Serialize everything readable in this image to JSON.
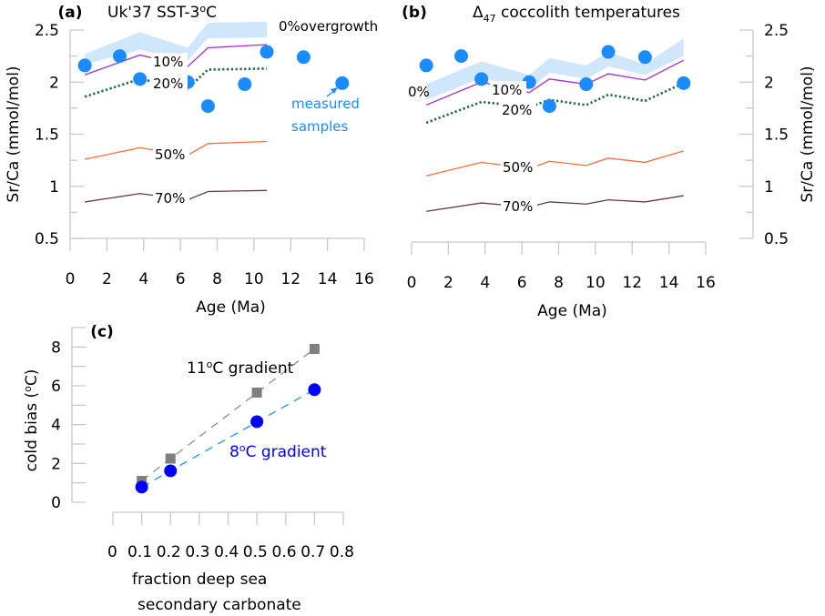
{
  "chart_data": [
    {
      "id": "a",
      "type": "line",
      "panel_label": "(a)",
      "title": "Uk'37 SST-3",
      "title_sup": "o",
      "title_suffix": "C",
      "xlabel": "Age (Ma)",
      "ylabel": "Sr/Ca (mmol/mol)",
      "xlim": [
        0,
        16
      ],
      "ylim": [
        0.5,
        2.5
      ],
      "xticks": [
        0,
        2,
        4,
        6,
        8,
        10,
        12,
        14,
        16
      ],
      "yticks": [
        0.5,
        1,
        1.5,
        2,
        2.5
      ],
      "y_axis_side": "left",
      "x": [
        0.8,
        3.8,
        6.4,
        7.5,
        10.7
      ],
      "band": {
        "name": "0% overgrowth",
        "label": "0%overgrowth",
        "color": "#d0e6fb",
        "upper": [
          2.27,
          2.48,
          2.33,
          2.57,
          2.58
        ],
        "lower": [
          2.17,
          2.31,
          2.21,
          2.42,
          2.43
        ]
      },
      "series": [
        {
          "name": "10%",
          "label": "10%",
          "color": "#a02ed0",
          "style": "solid",
          "values": [
            2.07,
            2.26,
            2.15,
            2.33,
            2.36
          ]
        },
        {
          "name": "20%",
          "label": "20%",
          "color": "#176a3a",
          "style": "dotted",
          "values": [
            1.86,
            2.03,
            1.94,
            2.12,
            2.13
          ]
        },
        {
          "name": "50%",
          "label": "50%",
          "color": "#f07040",
          "style": "solid",
          "values": [
            1.26,
            1.37,
            1.3,
            1.41,
            1.43
          ]
        },
        {
          "name": "70%",
          "label": "70%",
          "color": "#6b3a3a",
          "style": "solid",
          "values": [
            0.85,
            0.93,
            0.87,
            0.95,
            0.96
          ]
        }
      ],
      "samples": {
        "name": "measured samples",
        "label_line1": "measured",
        "label_line2": "samples",
        "color": "#1a8cff",
        "x": [
          0.8,
          2.7,
          3.8,
          6.4,
          7.5,
          9.5,
          10.7,
          12.7,
          14.8
        ],
        "y": [
          2.16,
          2.25,
          2.03,
          2.0,
          1.77,
          1.98,
          2.29,
          2.24,
          1.99
        ]
      },
      "grid": false
    },
    {
      "id": "b",
      "type": "line",
      "panel_label": "(b)",
      "title_delta": "Δ",
      "title_sub": "47",
      "title": " coccolith temperatures",
      "xlabel": "Age (Ma)",
      "ylabel": "Sr/Ca (mmol/mol)",
      "xlim": [
        0,
        16
      ],
      "ylim": [
        0.5,
        2.5
      ],
      "xticks": [
        0,
        2,
        4,
        6,
        8,
        10,
        12,
        14,
        16
      ],
      "yticks": [
        0.5,
        1,
        1.5,
        2,
        2.5
      ],
      "y_axis_side": "right",
      "x": [
        0.8,
        3.8,
        6.4,
        7.5,
        9.5,
        10.7,
        12.7,
        14.8
      ],
      "band": {
        "name": "0%",
        "label": "0%",
        "color": "#d0e6fb",
        "upper": [
          1.98,
          2.2,
          2.07,
          2.23,
          2.16,
          2.29,
          2.17,
          2.42
        ],
        "lower": [
          1.83,
          2.04,
          1.93,
          2.09,
          2.03,
          2.15,
          2.07,
          2.25
        ]
      },
      "series": [
        {
          "name": "10%",
          "label": "10%",
          "color": "#a02ed0",
          "style": "solid",
          "values": [
            1.78,
            2.0,
            1.9,
            2.03,
            1.98,
            2.08,
            2.02,
            2.21
          ]
        },
        {
          "name": "20%",
          "label": "20%",
          "color": "#176a3a",
          "style": "dotted",
          "values": [
            1.61,
            1.81,
            1.76,
            1.83,
            1.78,
            1.88,
            1.82,
            1.99
          ]
        },
        {
          "name": "50%",
          "label": "50%",
          "color": "#f07040",
          "style": "solid",
          "values": [
            1.1,
            1.23,
            1.17,
            1.24,
            1.2,
            1.27,
            1.23,
            1.34
          ]
        },
        {
          "name": "70%",
          "label": "70%",
          "color": "#6b3a3a",
          "style": "solid",
          "values": [
            0.76,
            0.84,
            0.8,
            0.85,
            0.83,
            0.87,
            0.85,
            0.91
          ]
        }
      ],
      "samples": {
        "name": "measured samples",
        "color": "#1a8cff",
        "x": [
          0.8,
          2.7,
          3.8,
          6.4,
          7.5,
          9.5,
          10.7,
          12.7,
          14.8
        ],
        "y": [
          2.16,
          2.25,
          2.03,
          2.0,
          1.77,
          1.98,
          2.29,
          2.24,
          1.99
        ]
      },
      "grid": false
    },
    {
      "id": "c",
      "type": "scatter",
      "panel_label": "(c)",
      "xlabel_line1": "fraction deep sea",
      "xlabel_line2": "secondary carbonate",
      "ylabel": "cold bias (",
      "ylabel_sup": "o",
      "ylabel_suffix": "C)",
      "xlim": [
        0,
        0.8
      ],
      "ylim": [
        0,
        9
      ],
      "xticks": [
        0,
        0.1,
        0.2,
        0.3,
        0.4,
        0.5,
        0.6,
        0.7,
        0.8
      ],
      "xtick_labels": [
        "0",
        "0.1",
        "0.2",
        "0.3",
        "0.4",
        "0.5",
        "0.6",
        "0.7",
        "0.8"
      ],
      "yticks": [
        0,
        2,
        4,
        6,
        8
      ],
      "series": [
        {
          "name": "11°C gradient",
          "label": "11",
          "label_sup": "o",
          "label_suffix": "C gradient",
          "marker": "square",
          "color": "#7f7f7f",
          "trend_color": "#8c8c8c",
          "label_color": "#000000",
          "x": [
            0.1,
            0.2,
            0.5,
            0.7
          ],
          "y": [
            1.1,
            2.25,
            5.65,
            7.9
          ]
        },
        {
          "name": "8°C gradient",
          "label": "8",
          "label_sup": "o",
          "label_suffix": "C gradient",
          "marker": "circle",
          "color": "#0000ff",
          "trend_color": "#1e90ff",
          "label_color": "#0000ff",
          "x": [
            0.1,
            0.2,
            0.5,
            0.7
          ],
          "y": [
            0.78,
            1.62,
            4.15,
            5.8
          ]
        }
      ],
      "grid": false
    }
  ]
}
